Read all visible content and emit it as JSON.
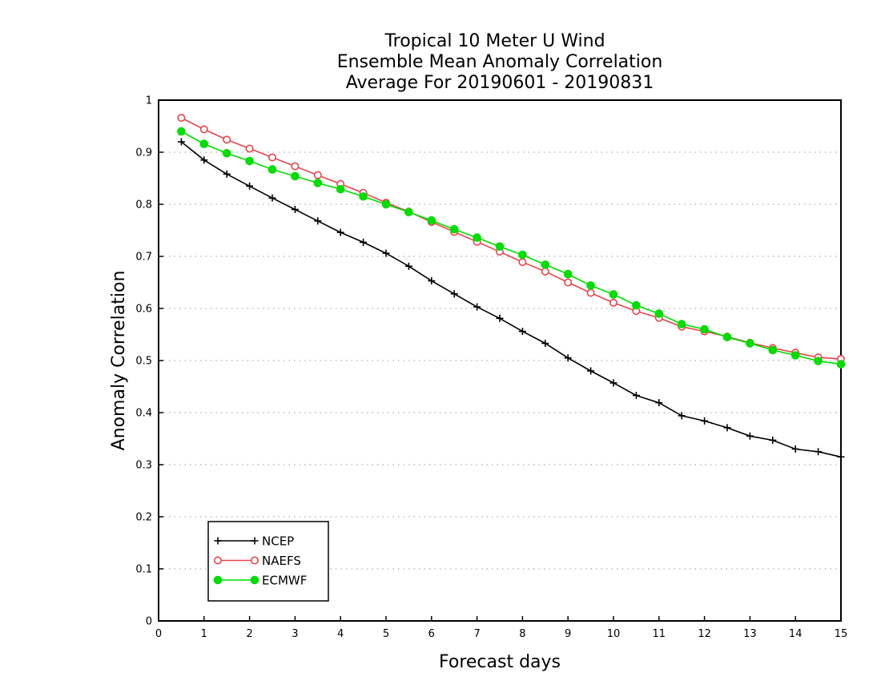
{
  "chart_data": {
    "type": "line",
    "title": [
      "Tropical 10 Meter U Wind",
      "Ensemble Mean Anomaly Correlation",
      "Average For 20190601 - 20190831"
    ],
    "xlabel": "Forecast days",
    "ylabel": "Anomaly Correlation",
    "xlim": [
      0,
      15
    ],
    "ylim": [
      0,
      1
    ],
    "x_ticks": [
      "0",
      "1",
      "2",
      "3",
      "4",
      "5",
      "6",
      "7",
      "8",
      "9",
      "10",
      "11",
      "12",
      "13",
      "14",
      "15"
    ],
    "y_ticks": [
      "0",
      "0.1",
      "0.2",
      "0.3",
      "0.4",
      "0.5",
      "0.6",
      "0.7",
      "0.8",
      "0.9",
      "1"
    ],
    "grid": "horizontal dotted",
    "legend_position": "bottom-left",
    "x": [
      0.5,
      1,
      1.5,
      2,
      2.5,
      3,
      3.5,
      4,
      4.5,
      5,
      5.5,
      6,
      6.5,
      7,
      7.5,
      8,
      8.5,
      9,
      9.5,
      10,
      10.5,
      11,
      11.5,
      12,
      12.5,
      13,
      13.5,
      14,
      14.5,
      15
    ],
    "series": [
      {
        "name": "NCEP",
        "color": "#000000",
        "marker": "plus",
        "values": [
          0.92,
          0.885,
          0.858,
          0.835,
          0.812,
          0.79,
          0.768,
          0.746,
          0.727,
          0.706,
          0.681,
          0.653,
          0.628,
          0.603,
          0.581,
          0.556,
          0.533,
          0.505,
          0.48,
          0.457,
          0.433,
          0.419,
          0.394,
          0.384,
          0.371,
          0.355,
          0.347,
          0.33,
          0.325,
          0.315
        ]
      },
      {
        "name": "NAEFS",
        "color": "#e8444c",
        "marker": "open-circle",
        "values": [
          0.966,
          0.944,
          0.924,
          0.907,
          0.89,
          0.873,
          0.856,
          0.839,
          0.822,
          0.803,
          0.786,
          0.766,
          0.747,
          0.728,
          0.709,
          0.689,
          0.671,
          0.65,
          0.63,
          0.611,
          0.595,
          0.582,
          0.565,
          0.556,
          0.546,
          0.534,
          0.524,
          0.515,
          0.506,
          0.503
        ]
      },
      {
        "name": "ECMWF",
        "color": "#00dd00",
        "marker": "filled-circle",
        "values": [
          0.94,
          0.916,
          0.898,
          0.883,
          0.867,
          0.854,
          0.841,
          0.829,
          0.815,
          0.8,
          0.785,
          0.769,
          0.752,
          0.736,
          0.719,
          0.703,
          0.684,
          0.666,
          0.644,
          0.627,
          0.606,
          0.59,
          0.57,
          0.56,
          0.545,
          0.533,
          0.52,
          0.51,
          0.499,
          0.493
        ]
      }
    ]
  }
}
